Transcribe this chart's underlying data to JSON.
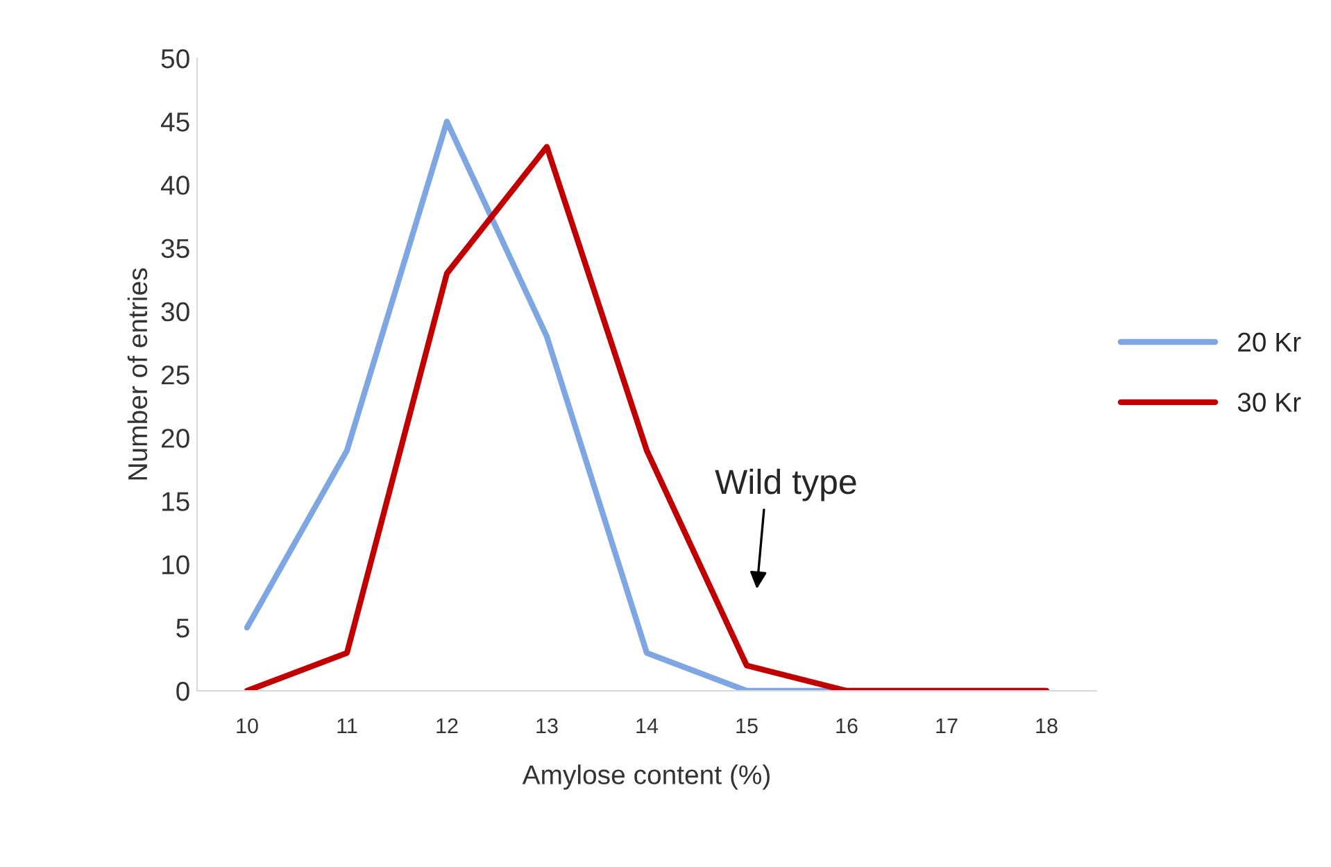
{
  "chart_data": {
    "type": "line",
    "xlabel": "Amylose content (%)",
    "ylabel": "Number of entries",
    "categories": [
      "10",
      "11",
      "12",
      "13",
      "14",
      "15",
      "16",
      "17",
      "18"
    ],
    "series": [
      {
        "name": "20 Kr",
        "color": "#7ea6e0",
        "values": [
          5,
          19,
          45,
          28,
          3,
          0,
          0,
          0,
          0
        ]
      },
      {
        "name": "30 Kr",
        "color": "#c00000",
        "values": [
          0,
          3,
          33,
          43,
          19,
          2,
          0,
          0,
          0
        ]
      }
    ],
    "ylim": [
      0,
      50
    ],
    "yticks": [
      0,
      5,
      10,
      15,
      20,
      25,
      30,
      35,
      40,
      45,
      50
    ],
    "grid": false,
    "legend": "right",
    "marker": "none",
    "line_style": "solid",
    "annotations": [
      "Wild type"
    ]
  }
}
